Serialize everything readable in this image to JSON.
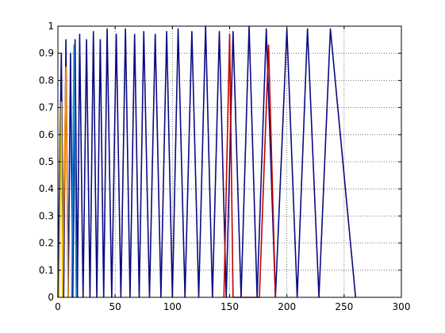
{
  "chart_data": {
    "type": "line",
    "title": "",
    "xlabel": "",
    "ylabel": "",
    "xlim": [
      0,
      300
    ],
    "ylim": [
      0,
      1
    ],
    "x_ticks": [
      "0",
      "50",
      "100",
      "150",
      "200",
      "250",
      "300"
    ],
    "y_ticks": [
      "0",
      "0.1",
      "0.2",
      "0.3",
      "0.4",
      "0.5",
      "0.6",
      "0.7",
      "0.8",
      "0.9",
      "1"
    ],
    "grid": true,
    "legend": "none",
    "series": [
      {
        "color": "#0a0a82",
        "description_points": [
          [
            0,
            0
          ],
          [
            3,
            0.9
          ],
          [
            5,
            0
          ],
          [
            7,
            0.95
          ],
          [
            9,
            0
          ],
          [
            11,
            0.9
          ],
          [
            13,
            0
          ],
          [
            15,
            0.95
          ],
          [
            17,
            0
          ],
          [
            19,
            0.97
          ],
          [
            22,
            0
          ],
          [
            25,
            0.95
          ],
          [
            28,
            0
          ],
          [
            31,
            0.98
          ],
          [
            34,
            0
          ],
          [
            37,
            0.95
          ],
          [
            40,
            0
          ],
          [
            43,
            0.99
          ],
          [
            47,
            0
          ],
          [
            51,
            0.97
          ],
          [
            55,
            0
          ],
          [
            59,
            0.99
          ],
          [
            63,
            0
          ],
          [
            67,
            0.97
          ],
          [
            71,
            0
          ],
          [
            75,
            0.98
          ],
          [
            80,
            0
          ],
          [
            85,
            0.97
          ],
          [
            90,
            0
          ],
          [
            95,
            0.98
          ],
          [
            100,
            0
          ],
          [
            105,
            0.99
          ],
          [
            111,
            0
          ],
          [
            117,
            0.98
          ],
          [
            123,
            0
          ],
          [
            129,
            1.0
          ],
          [
            135,
            0
          ],
          [
            141,
            0.98
          ],
          [
            147,
            0
          ],
          [
            153,
            0.98
          ],
          [
            160,
            0
          ],
          [
            167,
            1.0
          ],
          [
            174,
            0
          ],
          [
            182,
            0.99
          ],
          [
            190,
            0
          ],
          [
            200,
            0.99
          ],
          [
            209,
            0
          ],
          [
            218,
            0.99
          ],
          [
            228,
            0
          ],
          [
            238,
            0.99
          ],
          [
            260,
            0
          ]
        ]
      },
      {
        "color": "#c00000",
        "description_points": [
          [
            145,
            0
          ],
          [
            150,
            0.97
          ],
          [
            153,
            0
          ],
          [
            176,
            0
          ],
          [
            184,
            0.93
          ],
          [
            190,
            0
          ]
        ]
      },
      {
        "color": "#ff8c00",
        "description_points": [
          [
            4,
            0
          ],
          [
            7,
            0.85
          ],
          [
            9,
            0
          ]
        ]
      },
      {
        "color": "#e6c800",
        "description_points": [
          [
            1,
            0
          ],
          [
            3,
            0.72
          ],
          [
            4,
            0
          ]
        ]
      },
      {
        "color": "#1e96dc",
        "description_points": [
          [
            12,
            0
          ],
          [
            14,
            0.93
          ],
          [
            16,
            0
          ]
        ]
      }
    ]
  }
}
